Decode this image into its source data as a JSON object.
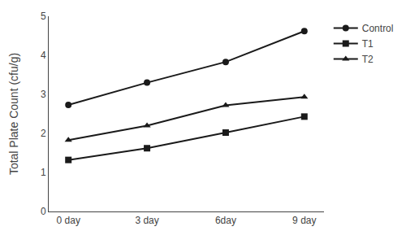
{
  "chart_data": {
    "type": "line",
    "categories": [
      "0 day",
      "3 day",
      "6day",
      "9 day"
    ],
    "series": [
      {
        "name": "Control",
        "color": "#1a1a1a",
        "marker": "circle",
        "values": [
          2.73,
          3.3,
          3.83,
          4.62
        ]
      },
      {
        "name": "T1",
        "color": "#1a1a1a",
        "marker": "square",
        "values": [
          1.32,
          1.62,
          2.02,
          2.43
        ]
      },
      {
        "name": "T2",
        "color": "#1a1a1a",
        "marker": "triangle",
        "values": [
          1.83,
          2.2,
          2.72,
          2.93
        ]
      }
    ],
    "ylabel": "Total Plate Count (cfu/g)",
    "ylim": [
      0,
      5
    ],
    "yticks": [
      0,
      1,
      2,
      3,
      4,
      5
    ],
    "grid": false,
    "legend": "right"
  }
}
